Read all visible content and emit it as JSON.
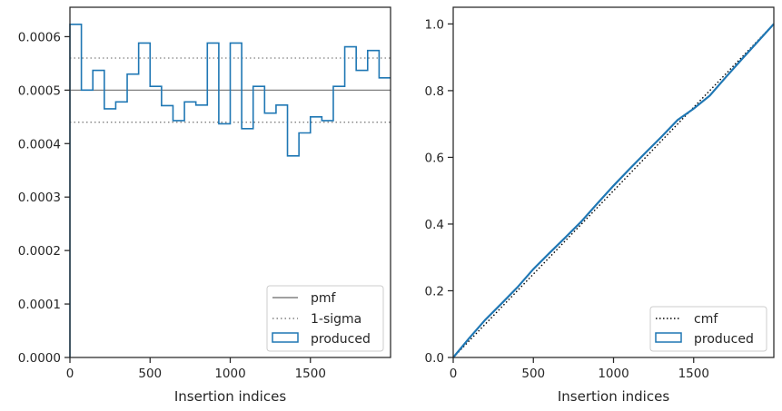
{
  "chart_data": [
    {
      "type": "step",
      "xlabel": "Insertion indices",
      "ylabel": "",
      "xlim": [
        0,
        2000
      ],
      "ylim": [
        0,
        0.000655
      ],
      "xticks": [
        0,
        500,
        1000,
        1500
      ],
      "xtick_labels": [
        "0",
        "500",
        "1000",
        "1500"
      ],
      "yticks": [
        0,
        0.0001,
        0.0002,
        0.0003,
        0.0004,
        0.0005,
        0.0006
      ],
      "ytick_labels": [
        "0.0000",
        "0.0001",
        "0.0002",
        "0.0003",
        "0.0004",
        "0.0005",
        "0.0006"
      ],
      "reference_lines": [
        {
          "name": "pmf",
          "y": 0.0005,
          "style": "solid",
          "color": "#808080"
        },
        {
          "name": "1-sigma",
          "y": [
            0.00044,
            0.00056
          ],
          "style": "dotted",
          "color": "#808080"
        }
      ],
      "series": [
        {
          "name": "produced",
          "color": "#1f77b4",
          "bin_edges": [
            0,
            71.4,
            142.9,
            214.3,
            285.7,
            357.1,
            428.6,
            500,
            571.4,
            642.9,
            714.3,
            785.7,
            857.1,
            928.6,
            1000,
            1071.4,
            1142.9,
            1214.3,
            1285.7,
            1357.1,
            1428.6,
            1500,
            1571.4,
            1642.9,
            1714.3,
            1785.7,
            1857.1,
            1928.6,
            2000
          ],
          "values": [
            0.000623,
            0.0005,
            0.000537,
            0.000465,
            0.000478,
            0.00053,
            0.000588,
            0.000507,
            0.000471,
            0.000443,
            0.000478,
            0.000472,
            0.000588,
            0.000437,
            0.000588,
            0.000428,
            0.000507,
            0.000457,
            0.000472,
            0.000377,
            0.00042,
            0.00045,
            0.000443,
            0.000507,
            0.000581,
            0.000537,
            0.000574,
            0.000523
          ]
        }
      ],
      "legend": {
        "placement": "lower right",
        "entries": [
          "pmf",
          "1-sigma",
          "produced"
        ]
      },
      "grid": false
    },
    {
      "type": "line",
      "xlabel": "Insertion indices",
      "ylabel": "",
      "xlim": [
        0,
        2000
      ],
      "ylim": [
        0,
        1.05
      ],
      "xticks": [
        0,
        500,
        1000,
        1500
      ],
      "xtick_labels": [
        "0",
        "500",
        "1000",
        "1500"
      ],
      "yticks": [
        0,
        0.2,
        0.4,
        0.6,
        0.8,
        1.0
      ],
      "ytick_labels": [
        "0.0",
        "0.2",
        "0.4",
        "0.6",
        "0.8",
        "1.0"
      ],
      "series": [
        {
          "name": "cmf",
          "color": "#000000",
          "style": "dotted",
          "x": [
            0,
            2000
          ],
          "y": [
            0,
            1
          ]
        },
        {
          "name": "produced",
          "color": "#1f77b4",
          "style": "solid",
          "x": [
            0,
            100,
            200,
            300,
            400,
            500,
            600,
            700,
            800,
            900,
            1000,
            1100,
            1200,
            1300,
            1400,
            1500,
            1600,
            1700,
            1800,
            1900,
            2000
          ],
          "y": [
            0,
            0.058,
            0.113,
            0.161,
            0.21,
            0.265,
            0.313,
            0.36,
            0.408,
            0.462,
            0.515,
            0.565,
            0.614,
            0.662,
            0.712,
            0.746,
            0.785,
            0.84,
            0.894,
            0.947,
            1.0
          ]
        }
      ],
      "legend": {
        "placement": "lower right",
        "entries": [
          "cmf",
          "produced"
        ]
      },
      "grid": false
    }
  ]
}
